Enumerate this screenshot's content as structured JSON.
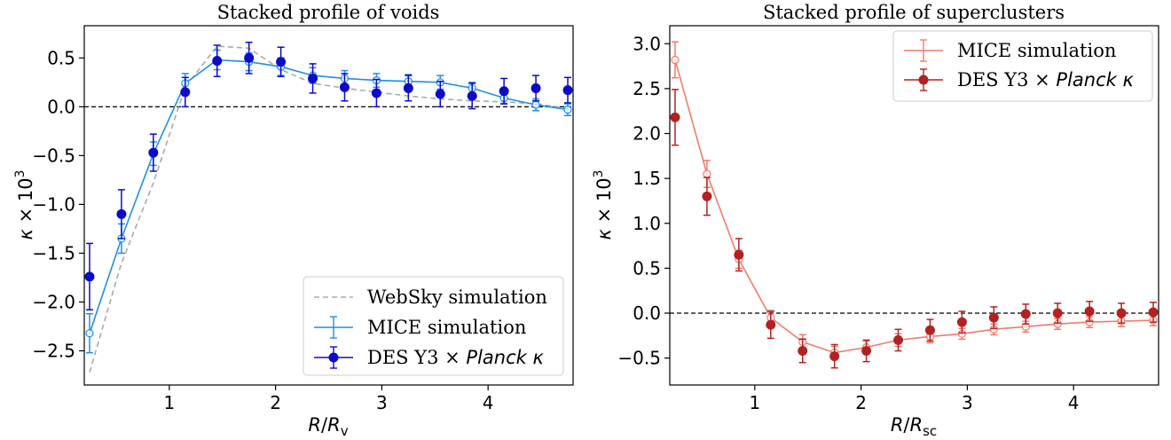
{
  "chart_data": [
    {
      "type": "line",
      "title": "Stacked profile of voids",
      "xlabel": "R/R_v",
      "ylabel": "κ × 10^3",
      "xlim": [
        0.2,
        4.8
      ],
      "ylim": [
        -2.85,
        0.83
      ],
      "xticks": [
        1,
        2,
        3,
        4
      ],
      "xtick_labels": [
        "1",
        "2",
        "3",
        "4"
      ],
      "yticks": [
        0.5,
        0.0,
        -0.5,
        -1.0,
        -1.5,
        -2.0,
        -2.5
      ],
      "ytick_labels": [
        "0.5",
        "0.0",
        "−0.5",
        "−1.0",
        "−1.5",
        "−2.0",
        "−2.5"
      ],
      "reference_line_y": 0.0,
      "grid": false,
      "legend_position": "lower-right",
      "series": [
        {
          "name": "WebSky simulation",
          "style": "dashed-line",
          "color": "#a9a9a9",
          "x": [
            0.25,
            0.55,
            0.85,
            1.15,
            1.45,
            1.75,
            2.05,
            2.35,
            2.65,
            2.95,
            3.25,
            3.55,
            3.85,
            4.15,
            4.45,
            4.75
          ],
          "values": [
            -2.72,
            -1.6,
            -0.78,
            0.2,
            0.62,
            0.6,
            0.38,
            0.24,
            0.19,
            0.15,
            0.11,
            0.08,
            0.06,
            0.05,
            0.03,
            -0.02
          ]
        },
        {
          "name": "MICE simulation",
          "style": "line-open-markers-errorbars",
          "color": "#1e8fe8",
          "x": [
            0.25,
            0.55,
            0.85,
            1.15,
            1.45,
            1.75,
            2.05,
            2.35,
            2.65,
            2.95,
            3.25,
            3.55,
            3.85,
            4.15,
            4.45,
            4.75
          ],
          "values": [
            -2.32,
            -1.35,
            -0.48,
            0.24,
            0.48,
            0.46,
            0.41,
            0.32,
            0.29,
            0.27,
            0.26,
            0.25,
            0.19,
            0.09,
            0.02,
            -0.03
          ],
          "errors": [
            0.2,
            0.15,
            0.12,
            0.1,
            0.1,
            0.09,
            0.09,
            0.08,
            0.08,
            0.07,
            0.07,
            0.07,
            0.06,
            0.06,
            0.06,
            0.06
          ]
        },
        {
          "name": "DES Y3 × Planck κ",
          "style": "filled-markers-errorbars",
          "color": "#0b0bc8",
          "x": [
            0.25,
            0.55,
            0.85,
            1.15,
            1.45,
            1.75,
            2.05,
            2.35,
            2.65,
            2.95,
            3.25,
            3.55,
            3.85,
            4.15,
            4.45,
            4.75
          ],
          "values": [
            -1.74,
            -1.1,
            -0.47,
            0.15,
            0.47,
            0.5,
            0.46,
            0.29,
            0.2,
            0.14,
            0.19,
            0.13,
            0.11,
            0.16,
            0.19,
            0.17
          ],
          "errors": [
            0.34,
            0.25,
            0.19,
            0.15,
            0.16,
            0.16,
            0.15,
            0.15,
            0.14,
            0.14,
            0.13,
            0.13,
            0.13,
            0.13,
            0.13,
            0.13
          ]
        }
      ]
    },
    {
      "type": "line",
      "title": "Stacked profile of superclusters",
      "xlabel": "R/R_sc",
      "ylabel": "κ × 10^3",
      "xlim": [
        0.2,
        4.8
      ],
      "ylim": [
        -0.8,
        3.2
      ],
      "xticks": [
        1,
        2,
        3,
        4
      ],
      "xtick_labels": [
        "1",
        "2",
        "3",
        "4"
      ],
      "yticks": [
        3.0,
        2.5,
        2.0,
        1.5,
        1.0,
        0.5,
        0.0,
        -0.5
      ],
      "ytick_labels": [
        "3.0",
        "2.5",
        "2.0",
        "1.5",
        "1.0",
        "0.5",
        "0.0",
        "−0.5"
      ],
      "reference_line_y": 0.0,
      "grid": false,
      "legend_position": "upper-right",
      "series": [
        {
          "name": "MICE simulation",
          "style": "line-open-markers-errorbars",
          "color": "#f07b6a",
          "x": [
            0.25,
            0.55,
            0.85,
            1.15,
            1.45,
            1.75,
            2.05,
            2.35,
            2.65,
            2.95,
            3.25,
            3.55,
            3.85,
            4.15,
            4.45,
            4.75
          ],
          "values": [
            2.82,
            1.55,
            0.6,
            -0.05,
            -0.32,
            -0.44,
            -0.38,
            -0.3,
            -0.26,
            -0.23,
            -0.18,
            -0.15,
            -0.12,
            -0.1,
            -0.09,
            -0.08
          ],
          "errors": [
            0.2,
            0.15,
            0.1,
            0.08,
            0.08,
            0.07,
            0.07,
            0.07,
            0.07,
            0.06,
            0.06,
            0.06,
            0.06,
            0.06,
            0.06,
            0.06
          ]
        },
        {
          "name": "DES Y3 × Planck κ",
          "style": "filled-markers-errorbars",
          "color": "#b22222",
          "x": [
            0.25,
            0.55,
            0.85,
            1.15,
            1.45,
            1.75,
            2.05,
            2.35,
            2.65,
            2.95,
            3.25,
            3.55,
            3.85,
            4.15,
            4.45,
            4.75
          ],
          "values": [
            2.18,
            1.3,
            0.65,
            -0.13,
            -0.42,
            -0.48,
            -0.42,
            -0.3,
            -0.19,
            -0.1,
            -0.05,
            -0.01,
            0.0,
            0.02,
            0.0,
            0.01
          ],
          "errors": [
            0.31,
            0.21,
            0.18,
            0.15,
            0.13,
            0.13,
            0.12,
            0.12,
            0.12,
            0.12,
            0.12,
            0.11,
            0.11,
            0.11,
            0.11,
            0.11
          ]
        }
      ]
    }
  ]
}
